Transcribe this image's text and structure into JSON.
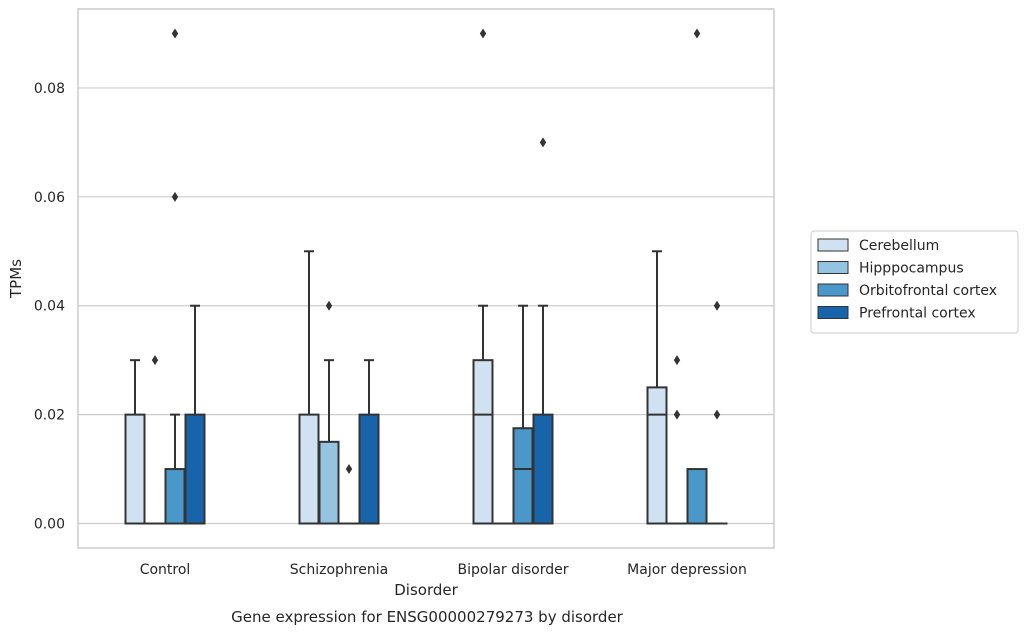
{
  "chart_data": {
    "type": "box",
    "caption": "Gene expression for ENSG00000279273 by disorder",
    "xlabel": "Disorder",
    "ylabel": "TPMs",
    "ylim": [
      -0.0045,
      0.0945
    ],
    "yticks": [
      0.0,
      0.02,
      0.04,
      0.06,
      0.08
    ],
    "ytick_labels": [
      "0.00",
      "0.02",
      "0.04",
      "0.06",
      "0.08"
    ],
    "grid": true,
    "legend_position": "right",
    "categories": [
      "Control",
      "Schizophrenia",
      "Bipolar disorder",
      "Major depression"
    ],
    "series": [
      {
        "name": "Cerebellum",
        "color": "#d0e1f2",
        "boxes": [
          {
            "q1": 0.0,
            "median": 0.0,
            "q3": 0.02,
            "whislo": 0.0,
            "whishi": 0.03,
            "fliers": []
          },
          {
            "q1": 0.0,
            "median": 0.0,
            "q3": 0.02,
            "whislo": 0.0,
            "whishi": 0.05,
            "fliers": []
          },
          {
            "q1": 0.0,
            "median": 0.02,
            "q3": 0.03,
            "whislo": 0.0,
            "whishi": 0.04,
            "fliers": [
              0.09
            ]
          },
          {
            "q1": 0.0,
            "median": 0.02,
            "q3": 0.025,
            "whislo": 0.0,
            "whishi": 0.05,
            "fliers": []
          }
        ]
      },
      {
        "name": "Hipppocampus",
        "color": "#94c4df",
        "boxes": [
          {
            "q1": 0.0,
            "median": 0.0,
            "q3": 0.0,
            "whislo": 0.0,
            "whishi": 0.0,
            "fliers": [
              0.03
            ]
          },
          {
            "q1": 0.0,
            "median": 0.0,
            "q3": 0.015,
            "whislo": 0.0,
            "whishi": 0.03,
            "fliers": [
              0.04
            ]
          },
          {
            "q1": 0.0,
            "median": 0.0,
            "q3": 0.0,
            "whislo": 0.0,
            "whishi": 0.0,
            "fliers": []
          },
          {
            "q1": 0.0,
            "median": 0.0,
            "q3": 0.0,
            "whislo": 0.0,
            "whishi": 0.0,
            "fliers": [
              0.02,
              0.03
            ]
          }
        ]
      },
      {
        "name": "Orbitofrontal cortex",
        "color": "#4a98c9",
        "boxes": [
          {
            "q1": 0.0,
            "median": 0.0,
            "q3": 0.01,
            "whislo": 0.0,
            "whishi": 0.02,
            "fliers": [
              0.06,
              0.09
            ]
          },
          {
            "q1": 0.0,
            "median": 0.0,
            "q3": 0.0,
            "whislo": 0.0,
            "whishi": 0.0,
            "fliers": [
              0.01
            ]
          },
          {
            "q1": 0.0,
            "median": 0.01,
            "q3": 0.0175,
            "whislo": 0.0,
            "whishi": 0.04,
            "fliers": []
          },
          {
            "q1": 0.0,
            "median": 0.0,
            "q3": 0.01,
            "whislo": 0.0,
            "whishi": 0.01,
            "fliers": [
              0.09
            ]
          }
        ]
      },
      {
        "name": "Prefrontal cortex",
        "color": "#1764ab",
        "boxes": [
          {
            "q1": 0.0,
            "median": 0.0,
            "q3": 0.02,
            "whislo": 0.0,
            "whishi": 0.04,
            "fliers": []
          },
          {
            "q1": 0.0,
            "median": 0.0,
            "q3": 0.02,
            "whislo": 0.0,
            "whishi": 0.03,
            "fliers": []
          },
          {
            "q1": 0.0,
            "median": 0.0,
            "q3": 0.02,
            "whislo": 0.0,
            "whishi": 0.04,
            "fliers": [
              0.07
            ]
          },
          {
            "q1": 0.0,
            "median": 0.0,
            "q3": 0.0,
            "whislo": 0.0,
            "whishi": 0.0,
            "fliers": [
              0.02,
              0.04
            ]
          }
        ]
      }
    ]
  },
  "style": {
    "grid_color": "#cccccc",
    "spine_color": "#cccccc",
    "line_color": "#333333",
    "text_color": "#262626"
  }
}
